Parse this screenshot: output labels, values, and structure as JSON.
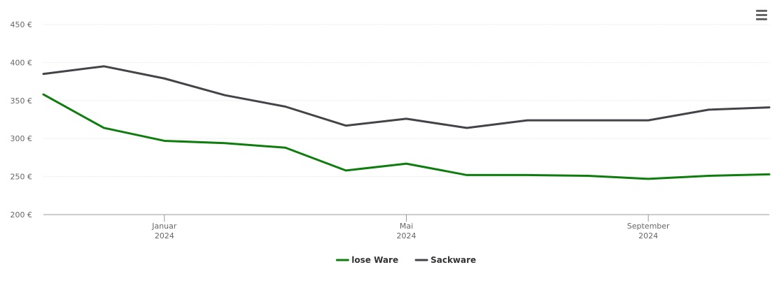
{
  "chart_data": {
    "type": "line",
    "x": [
      "2023-11",
      "2023-12",
      "2024-01",
      "2024-02",
      "2024-03",
      "2024-04",
      "2024-05",
      "2024-06",
      "2024-07",
      "2024-08",
      "2024-09",
      "2024-10",
      "2024-11"
    ],
    "series": [
      {
        "name": "lose Ware",
        "color": "#0e7d0e",
        "values": [
          358,
          314,
          297,
          294,
          288,
          258,
          267,
          252,
          252,
          251,
          247,
          251,
          253
        ]
      },
      {
        "name": "Sackware",
        "color": "#434348",
        "values": [
          385,
          395,
          379,
          357,
          342,
          317,
          326,
          314,
          324,
          324,
          324,
          338,
          341
        ]
      }
    ],
    "xlim": [
      "2023-11",
      "2024-11"
    ],
    "xticks": [
      {
        "value": "2024-01",
        "label": "Januar 2024"
      },
      {
        "value": "2024-05",
        "label": "Mai 2024"
      },
      {
        "value": "2024-09",
        "label": "September 2024"
      }
    ],
    "ylim": [
      200,
      450
    ],
    "yticks": [
      {
        "value": 200,
        "label": "200 €"
      },
      {
        "value": 250,
        "label": "250 €"
      },
      {
        "value": 300,
        "label": "300 €"
      },
      {
        "value": 350,
        "label": "350 €"
      },
      {
        "value": 400,
        "label": "400 €"
      },
      {
        "value": 450,
        "label": "450 €"
      }
    ],
    "grid": true,
    "legend": "bottom"
  }
}
